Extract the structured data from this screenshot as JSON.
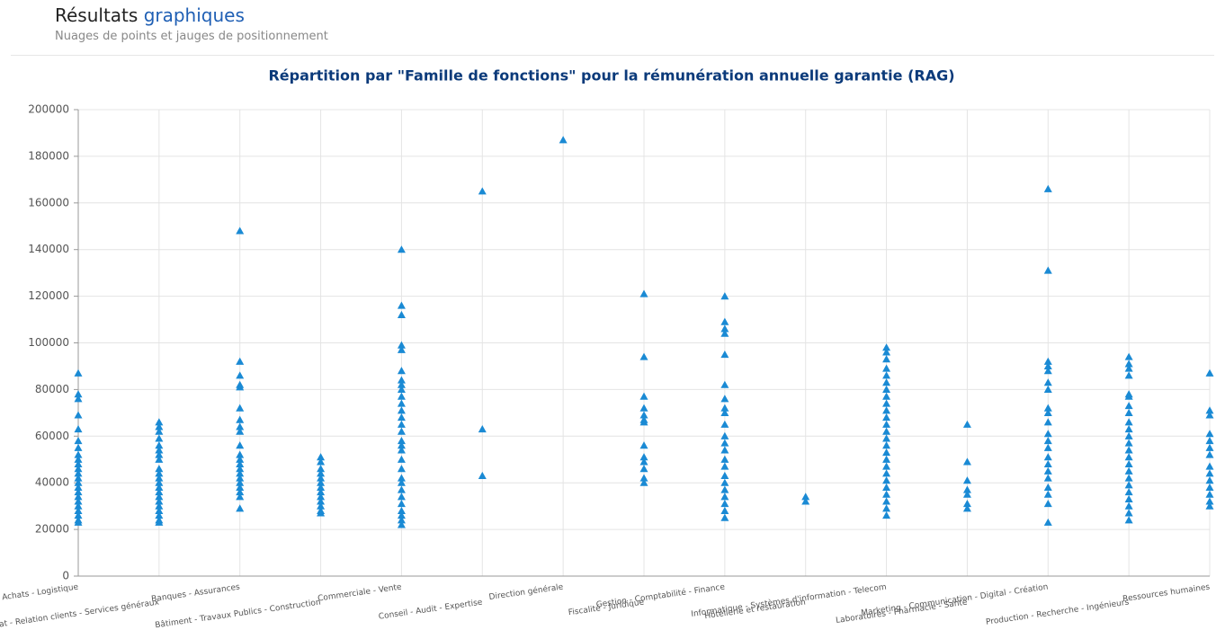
{
  "header": {
    "title": "Résultats",
    "title_highlight": "graphiques",
    "subtitle": "Nuages de points et jauges de positionnement"
  },
  "chart_data": {
    "type": "scatter",
    "title": "Répartition par \"Famille de fonctions\" pour la rémunération annuelle garantie (RAG)",
    "categories": [
      "Achats - Logistique",
      "Assistanat - Relation clients - Services généraux",
      "Banques - Assurances",
      "Bâtiment - Travaux Publics - Construction",
      "Commerciale - Vente",
      "Conseil - Audit - Expertise",
      "Direction générale",
      "Fiscalité - Juridique",
      "Gestion - Comptabilité - Finance",
      "Hôtellerie et restauration",
      "Informatique - Systèmes d'information - Telecom",
      "Laboratoires - Pharmacie - Santé",
      "Marketing - Communication - Digital - Création",
      "Production - Recherche - Ingénieurs",
      "Ressources humaines"
    ],
    "values": [
      [
        87000,
        78000,
        76000,
        69000,
        63000,
        58000,
        55000,
        52000,
        50000,
        48000,
        46000,
        44000,
        42000,
        40000,
        38000,
        36000,
        34000,
        32000,
        30000,
        28000,
        26000,
        24000,
        23000
      ],
      [
        66000,
        64000,
        62000,
        59000,
        56000,
        54000,
        52000,
        50000,
        46000,
        44000,
        42000,
        40000,
        38000,
        36000,
        34000,
        32000,
        30000,
        28000,
        26000,
        24000,
        23000
      ],
      [
        148000,
        92000,
        86000,
        82000,
        81000,
        72000,
        67000,
        64000,
        62000,
        56000,
        52000,
        50000,
        48000,
        46000,
        44000,
        42000,
        40000,
        38000,
        36000,
        34000,
        29000
      ],
      [
        51000,
        49000,
        46000,
        44000,
        42000,
        40000,
        38000,
        36000,
        34000,
        32000,
        30000,
        28000,
        27000
      ],
      [
        140000,
        116000,
        112000,
        99000,
        97000,
        88000,
        84000,
        82000,
        80000,
        77000,
        74000,
        71000,
        68000,
        65000,
        62000,
        58000,
        56000,
        54000,
        50000,
        46000,
        42000,
        40000,
        37000,
        34000,
        31000,
        28000,
        26000,
        24000,
        22000
      ],
      [
        165000,
        63000,
        43000
      ],
      [
        187000
      ],
      [
        121000,
        94000,
        77000,
        72000,
        69000,
        67000,
        66000,
        56000,
        51000,
        49000,
        46000,
        42000,
        40000
      ],
      [
        120000,
        109000,
        106000,
        104000,
        95000,
        82000,
        76000,
        72000,
        70000,
        65000,
        60000,
        57000,
        54000,
        50000,
        47000,
        43000,
        40000,
        37000,
        34000,
        31000,
        28000,
        25000
      ],
      [
        34000,
        32000
      ],
      [
        98000,
        96000,
        93000,
        89000,
        86000,
        83000,
        80000,
        77000,
        74000,
        71000,
        68000,
        65000,
        62000,
        59000,
        56000,
        53000,
        50000,
        47000,
        44000,
        41000,
        38000,
        35000,
        32000,
        29000,
        26000
      ],
      [
        65000,
        49000,
        41000,
        37000,
        35000,
        31000,
        29000
      ],
      [
        166000,
        131000,
        92000,
        90000,
        88000,
        83000,
        80000,
        72000,
        70000,
        66000,
        61000,
        58000,
        55000,
        51000,
        48000,
        45000,
        42000,
        38000,
        35000,
        31000,
        23000
      ],
      [
        94000,
        91000,
        89000,
        86000,
        78000,
        77000,
        73000,
        70000,
        66000,
        63000,
        60000,
        57000,
        54000,
        51000,
        48000,
        45000,
        42000,
        39000,
        36000,
        33000,
        30000,
        27000,
        24000
      ],
      [
        87000,
        71000,
        69000,
        61000,
        58000,
        55000,
        52000,
        47000,
        44000,
        41000,
        38000,
        35000,
        32000,
        30000
      ]
    ],
    "color": "#1a8ad4",
    "marker": "triangle",
    "ylim": [
      0,
      200000
    ],
    "yticks": [
      0,
      20000,
      40000,
      60000,
      80000,
      100000,
      120000,
      140000,
      160000,
      180000,
      200000
    ],
    "grid": true
  }
}
